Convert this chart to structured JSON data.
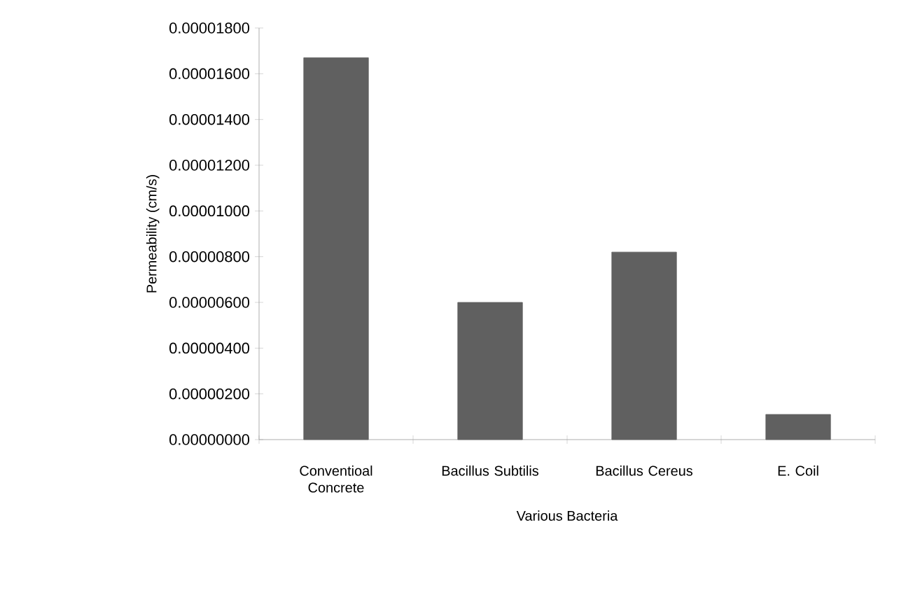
{
  "chart_data": {
    "type": "bar",
    "xlabel": "Various Bacteria",
    "ylabel": "Permeability (cm/s)",
    "categories": [
      "Conventioal Concrete",
      "Bacillus Subtilis",
      "Bacillus Cereus",
      "E. Coil"
    ],
    "values": [
      1.67e-05,
      6e-06,
      8.2e-06,
      1.1e-06
    ],
    "color": "#606060",
    "ylim": [
      0,
      1.8e-05
    ],
    "yticks": [
      {
        "value": 0,
        "label": "0.00000000"
      },
      {
        "value": 2e-06,
        "label": "0.00000200"
      },
      {
        "value": 4e-06,
        "label": "0.00000400"
      },
      {
        "value": 6e-06,
        "label": "0.00000600"
      },
      {
        "value": 8e-06,
        "label": "0.00000800"
      },
      {
        "value": 1e-05,
        "label": "0.00001000"
      },
      {
        "value": 1.2e-05,
        "label": "0.00001200"
      },
      {
        "value": 1.4e-05,
        "label": "0.00001400"
      },
      {
        "value": 1.6e-05,
        "label": "0.00001600"
      },
      {
        "value": 1.8e-05,
        "label": "0.00001800"
      }
    ],
    "grid": false
  }
}
